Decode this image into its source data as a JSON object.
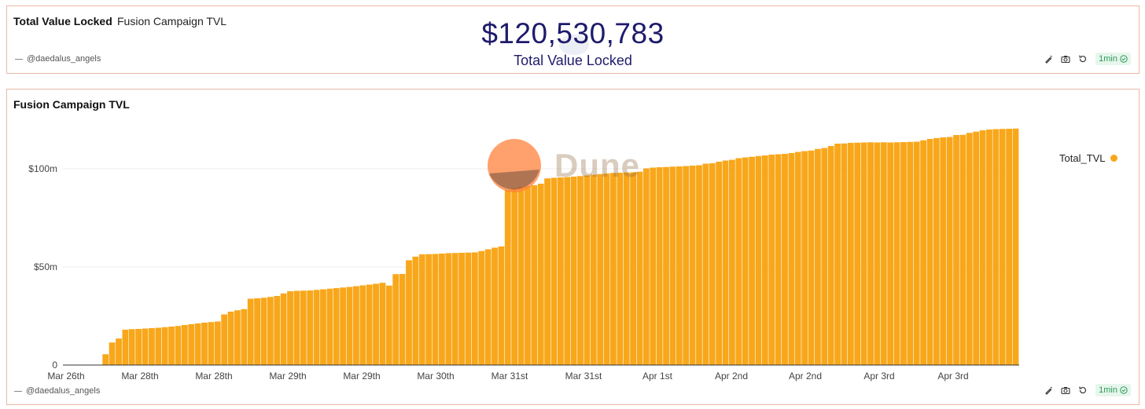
{
  "top_panel": {
    "title": "Total Value Locked",
    "subtitle": "Fusion Campaign TVL",
    "author": "@daedalus_angels",
    "counter_value": "$120,530,783",
    "counter_label": "Total Value Locked",
    "refresh_label": "1min"
  },
  "bottom_panel": {
    "title": "Fusion Campaign TVL",
    "author": "@daedalus_angels",
    "refresh_label": "1min",
    "watermark": "Dune",
    "legend_label": "Total_TVL"
  },
  "colors": {
    "bar": "#f8a71b",
    "counter_text": "#1e1b6b",
    "panel_border": "#e8b9a6",
    "refresh_green": "#2d9a59"
  },
  "icons": [
    "pen-icon",
    "camera-icon",
    "refresh-icon",
    "check-circle-icon"
  ],
  "chart_data": {
    "type": "bar",
    "series": [
      {
        "name": "Total_TVL"
      }
    ],
    "ylim": [
      0,
      120
    ],
    "yticks": [
      {
        "value": 0,
        "label": "0"
      },
      {
        "value": 50,
        "label": "$50m"
      },
      {
        "value": 100,
        "label": "$100m"
      }
    ],
    "xtick_labels": [
      "Mar 26th",
      "Mar 28th",
      "Mar 28th",
      "Mar 29th",
      "Mar 29th",
      "Mar 30th",
      "Mar 31st",
      "Mar 31st",
      "Apr 1st",
      "Apr 2nd",
      "Apr 2nd",
      "Apr 3rd",
      "Apr 3rd"
    ],
    "values": [
      0,
      0,
      0,
      0,
      0,
      0,
      5.5,
      11.5,
      13.5,
      18,
      18.3,
      18.4,
      18.6,
      18.8,
      19,
      19.3,
      19.6,
      19.9,
      20.4,
      20.8,
      21.2,
      21.6,
      21.9,
      22.2,
      25.8,
      27.2,
      27.9,
      28.5,
      33.8,
      34,
      34.3,
      34.7,
      35.2,
      36.5,
      37.6,
      37.8,
      37.9,
      38,
      38.3,
      38.6,
      38.9,
      39.2,
      39.5,
      39.8,
      40.2,
      40.6,
      41,
      41.4,
      41.9,
      40.5,
      46.3,
      46.4,
      53.4,
      55.2,
      56.4,
      56.5,
      56.6,
      56.8,
      57,
      57.1,
      57.2,
      57.3,
      57.4,
      58.1,
      59,
      59.8,
      60.4,
      89.4,
      90.2,
      90.8,
      91.2,
      91.6,
      92.4,
      95.1,
      95.4,
      95.6,
      95.8,
      96,
      96.3,
      96.6,
      97,
      97.3,
      97.6,
      97.9,
      98,
      98.1,
      98.2,
      98.5,
      100.2,
      100.6,
      100.8,
      100.9,
      101.1,
      101.2,
      101.4,
      101.6,
      101.8,
      102.6,
      102.8,
      103.6,
      104.2,
      104.6,
      105.4,
      105.8,
      106.1,
      106.5,
      106.8,
      107.2,
      107.4,
      107.6,
      108,
      108.6,
      109,
      109.3,
      110.1,
      110.6,
      111.6,
      112.8,
      112.9,
      113.2,
      113.3,
      113.4,
      113.5,
      113.4,
      113.5,
      113.4,
      113.5,
      113.6,
      113.7,
      113.8,
      114.5,
      115.2,
      115.6,
      116,
      116.2,
      117.2,
      117.3,
      118.3,
      118.9,
      119.6,
      120,
      120.2,
      120.3,
      120.4,
      120.5
    ]
  }
}
